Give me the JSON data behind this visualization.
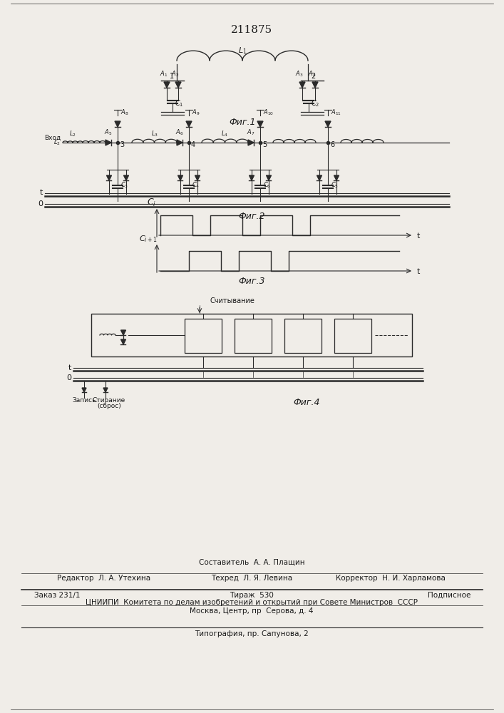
{
  "patent_number": "211875",
  "fig1_label": "Фиг.1",
  "fig2_label": "Фиг.2",
  "fig3_label": "Фиг.3",
  "fig4_label": "Фиг.4",
  "footer_line1": "Составитель  А. А. Плащин",
  "footer_line2_left": "Редактор  Л. А. Утехина",
  "footer_line2_mid": "Техред  Л. Я. Левина",
  "footer_line2_right": "Корректор  Н. И. Харламова",
  "footer_line3_left": "Заказ 231/1",
  "footer_line3_mid": "Тираж  530",
  "footer_line3_right": "Подписное",
  "footer_line4": "ЦНИИПИ  Комитета по делам изобретений и открытий при Совете Министров  СССР",
  "footer_line5": "Москва, Центр, пр  Серова, д. 4",
  "footer_line6": "Типография, пр. Сапунова, 2",
  "bg_color": "#f0ede8",
  "line_color": "#2a2a2a",
  "text_color": "#1a1a1a"
}
